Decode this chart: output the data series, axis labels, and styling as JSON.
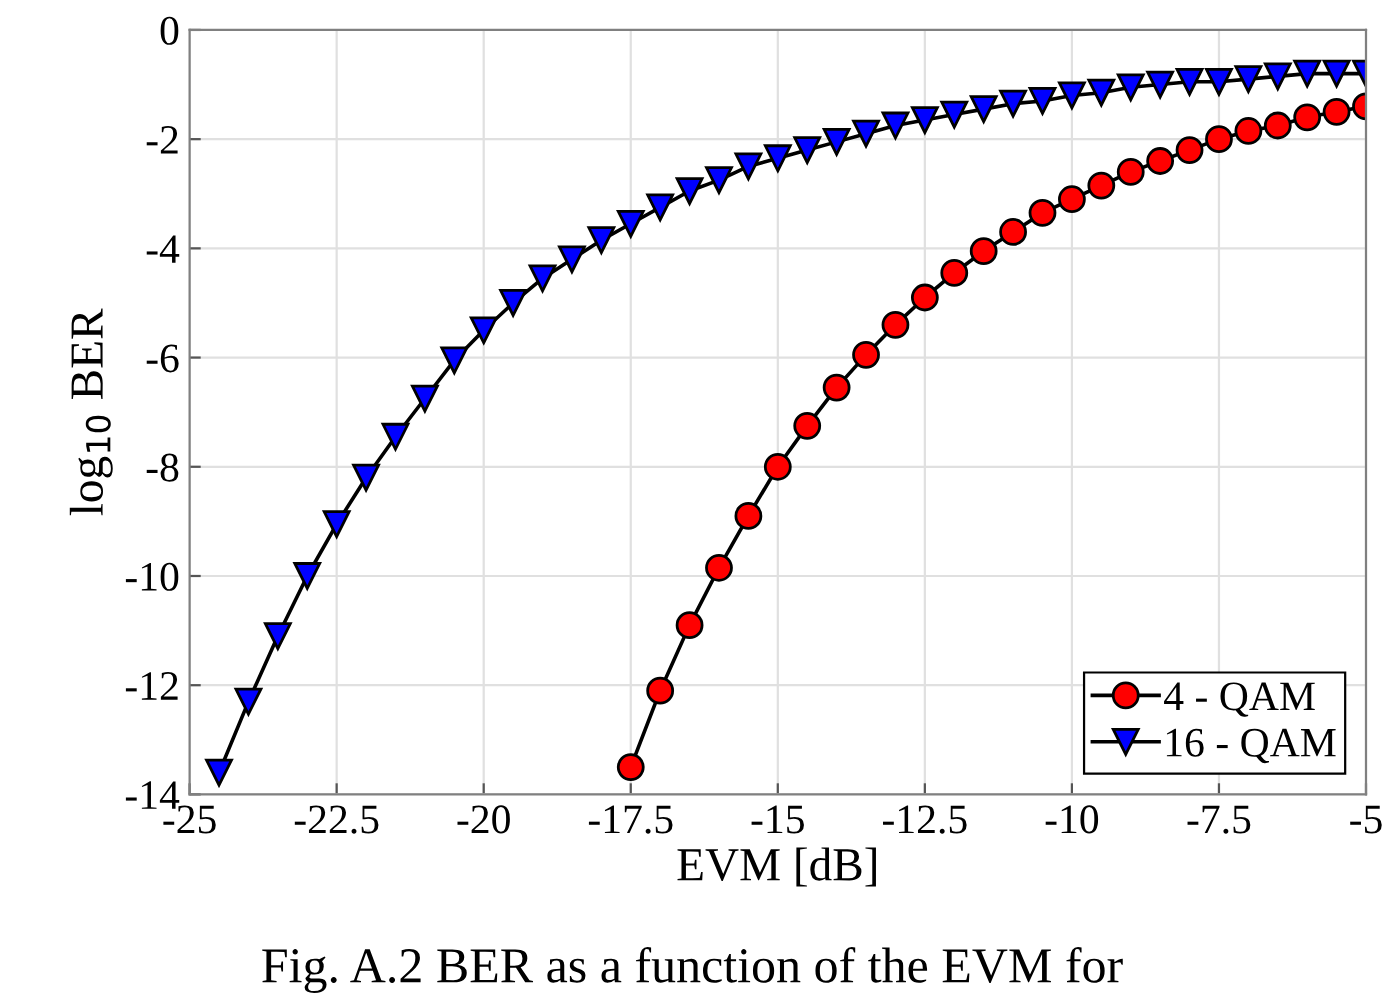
{
  "chart_data": {
    "type": "line",
    "xlabel": "EVM [dB]",
    "ylabel": "log$_{10}$ BER",
    "annotations": [
      "Fig. A.2 BER as a function of the EVM for"
    ],
    "xlim": [
      -25,
      -5
    ],
    "xticks": [
      -25,
      -22.5,
      -20,
      -17.5,
      -15,
      -12.5,
      -10,
      -7.5,
      -5
    ],
    "ylim": [
      -14,
      0
    ],
    "yticks": [
      -14,
      -12,
      -10,
      -8,
      -6,
      -4,
      -2,
      0
    ],
    "grid": true,
    "legend": "bottom right",
    "line_style": "solid",
    "series": [
      {
        "name": "4 - QAM",
        "color": "#ff0000",
        "marker": "circle",
        "x": [
          -17.5,
          -17,
          -16.5,
          -16,
          -15.5,
          -15,
          -14.5,
          -14,
          -13.5,
          -13,
          -12.5,
          -12,
          -11.5,
          -11,
          -10.5,
          -10,
          -9.5,
          -9,
          -8.5,
          -8,
          -7.5,
          -7,
          -6.5,
          -6,
          -5.5,
          -5
        ],
        "values": [
          -13.5,
          -12.1,
          -10.9,
          -9.85,
          -8.9,
          -8.0,
          -7.25,
          -6.55,
          -5.95,
          -5.4,
          -4.9,
          -4.45,
          -4.05,
          -3.7,
          -3.35,
          -3.1,
          -2.85,
          -2.6,
          -2.4,
          -2.2,
          -2.0,
          -1.85,
          -1.75,
          -1.6,
          -1.5,
          -1.4
        ]
      },
      {
        "name": "16 - QAM",
        "color": "#0000ff",
        "marker": "triangle",
        "x": [
          -24.5,
          -24,
          -23.5,
          -23,
          -22.5,
          -22,
          -21.5,
          -21,
          -20.5,
          -20,
          -19.5,
          -19,
          -18.5,
          -18,
          -17.5,
          -17,
          -16.5,
          -16,
          -15.5,
          -15,
          -14.5,
          -14,
          -13.5,
          -13,
          -12.5,
          -12,
          -11.5,
          -11,
          -10.5,
          -10,
          -9.5,
          -9,
          -8.5,
          -8,
          -7.5,
          -7,
          -6.5,
          -6,
          -5.5,
          -5
        ],
        "values": [
          -13.6,
          -12.3,
          -11.1,
          -10.0,
          -9.05,
          -8.2,
          -7.45,
          -6.75,
          -6.05,
          -5.5,
          -5.0,
          -4.55,
          -4.2,
          -3.85,
          -3.55,
          -3.25,
          -2.95,
          -2.75,
          -2.5,
          -2.35,
          -2.2,
          -2.05,
          -1.9,
          -1.75,
          -1.65,
          -1.55,
          -1.45,
          -1.35,
          -1.3,
          -1.2,
          -1.15,
          -1.05,
          -1.0,
          -0.95,
          -0.95,
          -0.9,
          -0.85,
          -0.8,
          -0.8,
          -0.8
        ]
      }
    ]
  }
}
